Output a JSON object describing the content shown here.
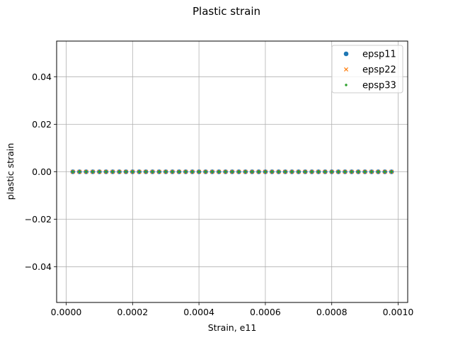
{
  "chart_data": {
    "type": "scatter",
    "title": "Plastic strain",
    "xlabel": "Strain, e11",
    "ylabel": "plastic strain",
    "xlim": [
      -2.88e-05,
      0.0010288
    ],
    "ylim": [
      -0.055,
      0.055
    ],
    "xticks": [
      0.0,
      0.0002,
      0.0004,
      0.0006,
      0.0008,
      0.001
    ],
    "xtick_labels": [
      "0.0000",
      "0.0002",
      "0.0004",
      "0.0006",
      "0.0008",
      "0.0010"
    ],
    "yticks": [
      0.04,
      0.02,
      0.0,
      -0.02,
      -0.04
    ],
    "ytick_labels": [
      "0.04",
      "0.02",
      "0.00",
      "−0.02",
      "−0.04"
    ],
    "grid": true,
    "legend_position": "top-right",
    "x": [
      2e-05,
      4e-05,
      6e-05,
      8e-05,
      0.0001,
      0.00012,
      0.00014,
      0.00016,
      0.00018,
      0.0002,
      0.00022,
      0.00024,
      0.00026,
      0.00028,
      0.0003,
      0.00032,
      0.00034,
      0.00036,
      0.00038,
      0.0004,
      0.00042,
      0.00044,
      0.00046,
      0.00048,
      0.0005,
      0.00052,
      0.00054,
      0.00056,
      0.00058,
      0.0006,
      0.00062,
      0.00064,
      0.00066,
      0.00068,
      0.0007,
      0.00072,
      0.00074,
      0.00076,
      0.00078,
      0.0008,
      0.00082,
      0.00084,
      0.00086,
      0.00088,
      0.0009,
      0.00092,
      0.00094,
      0.00096,
      0.00098
    ],
    "series": [
      {
        "name": "epsp11",
        "marker": "circle",
        "color": "#1f77b4",
        "values": [
          0,
          0,
          0,
          0,
          0,
          0,
          0,
          0,
          0,
          0,
          0,
          0,
          0,
          0,
          0,
          0,
          0,
          0,
          0,
          0,
          0,
          0,
          0,
          0,
          0,
          0,
          0,
          0,
          0,
          0,
          0,
          0,
          0,
          0,
          0,
          0,
          0,
          0,
          0,
          0,
          0,
          0,
          0,
          0,
          0,
          0,
          0,
          0,
          0
        ]
      },
      {
        "name": "epsp22",
        "marker": "x",
        "color": "#ff7f0e",
        "values": [
          0,
          0,
          0,
          0,
          0,
          0,
          0,
          0,
          0,
          0,
          0,
          0,
          0,
          0,
          0,
          0,
          0,
          0,
          0,
          0,
          0,
          0,
          0,
          0,
          0,
          0,
          0,
          0,
          0,
          0,
          0,
          0,
          0,
          0,
          0,
          0,
          0,
          0,
          0,
          0,
          0,
          0,
          0,
          0,
          0,
          0,
          0,
          0,
          0
        ]
      },
      {
        "name": "epsp33",
        "marker": "point",
        "color": "#2ca02c",
        "values": [
          0,
          0,
          0,
          0,
          0,
          0,
          0,
          0,
          0,
          0,
          0,
          0,
          0,
          0,
          0,
          0,
          0,
          0,
          0,
          0,
          0,
          0,
          0,
          0,
          0,
          0,
          0,
          0,
          0,
          0,
          0,
          0,
          0,
          0,
          0,
          0,
          0,
          0,
          0,
          0,
          0,
          0,
          0,
          0,
          0,
          0,
          0,
          0,
          0
        ]
      }
    ]
  }
}
